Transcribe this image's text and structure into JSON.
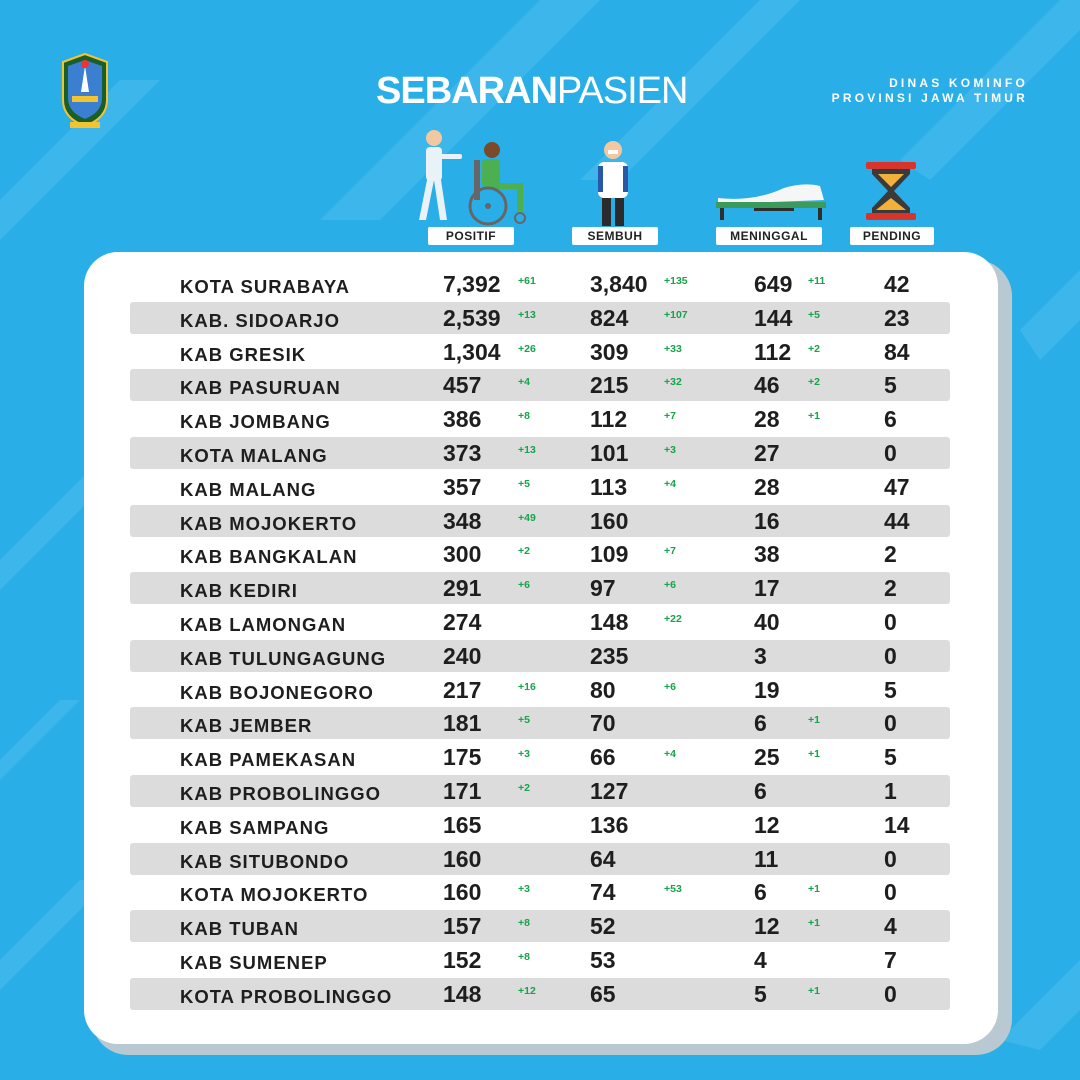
{
  "header": {
    "title_bold": "SEBARAN",
    "title_light": "PASIEN",
    "agency_line1": "DINAS KOMINFO",
    "agency_line2": "PROVINSI JAWA TIMUR"
  },
  "columns": [
    "POSITIF",
    "SEMBUH",
    "MENINGGAL",
    "PENDING"
  ],
  "icons": [
    "wheelchair-patient-icon",
    "recovered-person-icon",
    "hospital-bed-icon",
    "hourglass-icon",
    "east-java-emblem-icon"
  ],
  "colors": {
    "background": "#29aee8",
    "delta": "#17a34a",
    "row_shade": "#dcdcdc"
  },
  "rows": [
    {
      "name": "KOTA SURABAYA",
      "positif": "7,392",
      "positif_delta": "+61",
      "sembuh": "3,840",
      "sembuh_delta": "+135",
      "meninggal": "649",
      "meninggal_delta": "+11",
      "pending": "42"
    },
    {
      "name": "KAB. SIDOARJO",
      "positif": "2,539",
      "positif_delta": "+13",
      "sembuh": "824",
      "sembuh_delta": "+107",
      "meninggal": "144",
      "meninggal_delta": "+5",
      "pending": "23"
    },
    {
      "name": "KAB GRESIK",
      "positif": "1,304",
      "positif_delta": "+26",
      "sembuh": "309",
      "sembuh_delta": "+33",
      "meninggal": "112",
      "meninggal_delta": "+2",
      "pending": "84"
    },
    {
      "name": "KAB PASURUAN",
      "positif": "457",
      "positif_delta": "+4",
      "sembuh": "215",
      "sembuh_delta": "+32",
      "meninggal": "46",
      "meninggal_delta": "+2",
      "pending": "5"
    },
    {
      "name": "KAB JOMBANG",
      "positif": "386",
      "positif_delta": "+8",
      "sembuh": "112",
      "sembuh_delta": "+7",
      "meninggal": "28",
      "meninggal_delta": "+1",
      "pending": "6"
    },
    {
      "name": "KOTA MALANG",
      "positif": "373",
      "positif_delta": "+13",
      "sembuh": "101",
      "sembuh_delta": "+3",
      "meninggal": "27",
      "meninggal_delta": "",
      "pending": "0"
    },
    {
      "name": "KAB MALANG",
      "positif": "357",
      "positif_delta": "+5",
      "sembuh": "113",
      "sembuh_delta": "+4",
      "meninggal": "28",
      "meninggal_delta": "",
      "pending": "47"
    },
    {
      "name": "KAB MOJOKERTO",
      "positif": "348",
      "positif_delta": "+49",
      "sembuh": "160",
      "sembuh_delta": "",
      "meninggal": "16",
      "meninggal_delta": "",
      "pending": "44"
    },
    {
      "name": "KAB BANGKALAN",
      "positif": "300",
      "positif_delta": "+2",
      "sembuh": "109",
      "sembuh_delta": "+7",
      "meninggal": "38",
      "meninggal_delta": "",
      "pending": "2"
    },
    {
      "name": "KAB KEDIRI",
      "positif": "291",
      "positif_delta": "+6",
      "sembuh": "97",
      "sembuh_delta": "+6",
      "meninggal": "17",
      "meninggal_delta": "",
      "pending": "2"
    },
    {
      "name": "KAB LAMONGAN",
      "positif": "274",
      "positif_delta": "",
      "sembuh": "148",
      "sembuh_delta": "+22",
      "meninggal": "40",
      "meninggal_delta": "",
      "pending": "0"
    },
    {
      "name": "KAB TULUNGAGUNG",
      "positif": "240",
      "positif_delta": "",
      "sembuh": "235",
      "sembuh_delta": "",
      "meninggal": "3",
      "meninggal_delta": "",
      "pending": "0"
    },
    {
      "name": "KAB BOJONEGORO",
      "positif": "217",
      "positif_delta": "+16",
      "sembuh": "80",
      "sembuh_delta": "+6",
      "meninggal": "19",
      "meninggal_delta": "",
      "pending": "5"
    },
    {
      "name": "KAB JEMBER",
      "positif": "181",
      "positif_delta": "+5",
      "sembuh": "70",
      "sembuh_delta": "",
      "meninggal": "6",
      "meninggal_delta": "+1",
      "pending": "0"
    },
    {
      "name": "KAB PAMEKASAN",
      "positif": "175",
      "positif_delta": "+3",
      "sembuh": "66",
      "sembuh_delta": "+4",
      "meninggal": "25",
      "meninggal_delta": "+1",
      "pending": "5"
    },
    {
      "name": "KAB PROBOLINGGO",
      "positif": "171",
      "positif_delta": "+2",
      "sembuh": "127",
      "sembuh_delta": "",
      "meninggal": "6",
      "meninggal_delta": "",
      "pending": "1"
    },
    {
      "name": "KAB SAMPANG",
      "positif": "165",
      "positif_delta": "",
      "sembuh": "136",
      "sembuh_delta": "",
      "meninggal": "12",
      "meninggal_delta": "",
      "pending": "14"
    },
    {
      "name": "KAB SITUBONDO",
      "positif": "160",
      "positif_delta": "",
      "sembuh": "64",
      "sembuh_delta": "",
      "meninggal": "11",
      "meninggal_delta": "",
      "pending": "0"
    },
    {
      "name": "KOTA MOJOKERTO",
      "positif": "160",
      "positif_delta": "+3",
      "sembuh": "74",
      "sembuh_delta": "+53",
      "meninggal": "6",
      "meninggal_delta": "+1",
      "pending": "0"
    },
    {
      "name": "KAB TUBAN",
      "positif": "157",
      "positif_delta": "+8",
      "sembuh": "52",
      "sembuh_delta": "",
      "meninggal": "12",
      "meninggal_delta": "+1",
      "pending": "4"
    },
    {
      "name": "KAB SUMENEP",
      "positif": "152",
      "positif_delta": "+8",
      "sembuh": "53",
      "sembuh_delta": "",
      "meninggal": "4",
      "meninggal_delta": "",
      "pending": "7"
    },
    {
      "name": "KOTA PROBOLINGGO",
      "positif": "148",
      "positif_delta": "+12",
      "sembuh": "65",
      "sembuh_delta": "",
      "meninggal": "5",
      "meninggal_delta": "+1",
      "pending": "0"
    }
  ]
}
